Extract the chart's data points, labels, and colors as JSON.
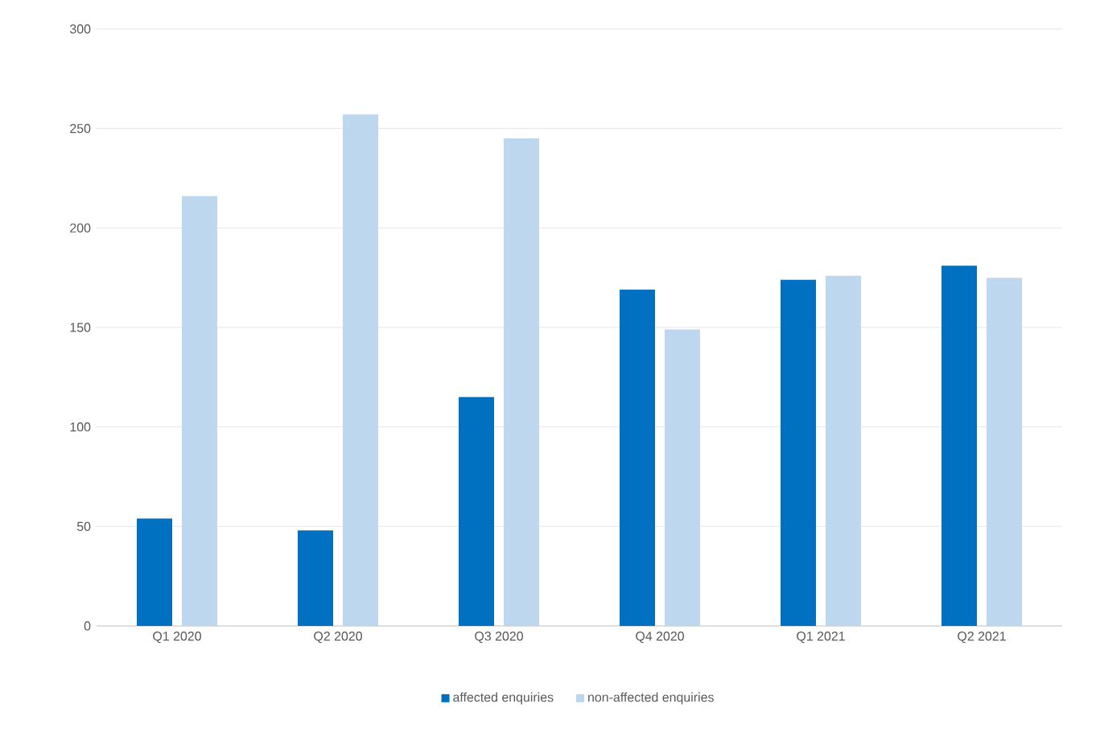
{
  "chart_data": {
    "type": "bar",
    "categories": [
      "Q1 2020",
      "Q2 2020",
      "Q3 2020",
      "Q4 2020",
      "Q1 2021",
      "Q2 2021"
    ],
    "series": [
      {
        "name": "affected enquiries",
        "color": "#0070c0",
        "values": [
          54,
          48,
          115,
          169,
          174,
          181
        ]
      },
      {
        "name": "non-affected enquiries",
        "color": "#bdd7ee",
        "values": [
          216,
          257,
          245,
          149,
          176,
          175
        ]
      }
    ],
    "ylim": [
      0,
      300
    ],
    "yticks": [
      0,
      50,
      100,
      150,
      200,
      250,
      300
    ],
    "grid": "y",
    "legend": "bottom"
  }
}
